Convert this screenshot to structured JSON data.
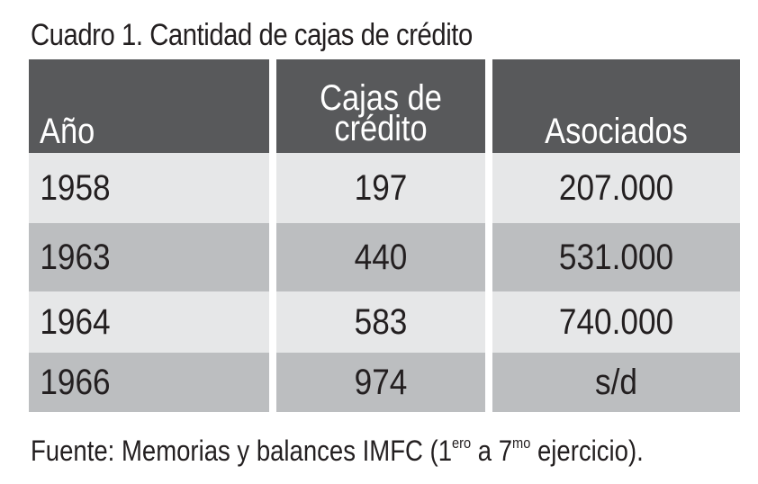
{
  "title": "Cuadro 1. Cantidad de cajas de crédito",
  "table": {
    "headers": {
      "year": "Año",
      "cajas_line1": "Cajas de",
      "cajas_line2": "crédito",
      "asociados": "Asociados"
    },
    "rows": [
      {
        "year": "1958",
        "cajas": "197",
        "asociados": "207.000"
      },
      {
        "year": "1963",
        "cajas": "440",
        "asociados": "531.000"
      },
      {
        "year": "1964",
        "cajas": "583",
        "asociados": "740.000"
      },
      {
        "year": "1966",
        "cajas": "974",
        "asociados": "s/d"
      }
    ]
  },
  "source": {
    "prefix": "Fuente: Memorias y balances IMFC (1",
    "sup1": "ero",
    "middle": " a 7",
    "sup2": "mo",
    "suffix": " ejercicio)."
  },
  "colors": {
    "header_bg": "#58595b",
    "row_light": "#e6e7e8",
    "row_dark": "#bcbec0",
    "text": "#231f20"
  }
}
